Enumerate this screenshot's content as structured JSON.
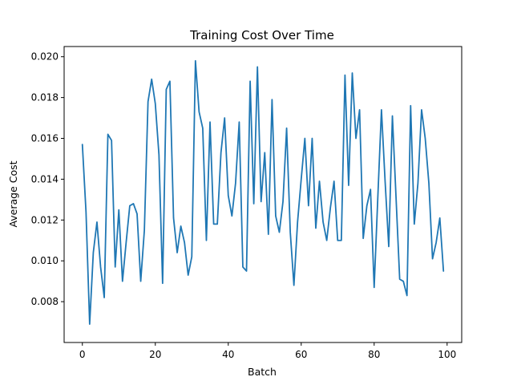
{
  "chart_data": {
    "type": "line",
    "title": "Training Cost Over Time",
    "xlabel": "Batch",
    "ylabel": "Average Cost",
    "xlim": [
      -5,
      104
    ],
    "ylim": [
      0.006,
      0.0205
    ],
    "x_ticks": [
      0,
      20,
      40,
      60,
      80,
      100
    ],
    "x_tick_labels": [
      "0",
      "20",
      "40",
      "60",
      "80",
      "100"
    ],
    "y_ticks": [
      0.008,
      0.01,
      0.012,
      0.014,
      0.016,
      0.018,
      0.02
    ],
    "y_tick_labels": [
      "0.008",
      "0.010",
      "0.012",
      "0.014",
      "0.016",
      "0.018",
      "0.020"
    ],
    "grid": false,
    "series_color": "#1f77b4",
    "series": [
      {
        "x": [
          0,
          1,
          2,
          3,
          4,
          5,
          6,
          7,
          8,
          9,
          10,
          11,
          12,
          13,
          14,
          15,
          16,
          17,
          18,
          19,
          20,
          21,
          22,
          23,
          24,
          25,
          26,
          27,
          28,
          29,
          30,
          31,
          32,
          33,
          34,
          35,
          36,
          37,
          38,
          39,
          40,
          41,
          42,
          43,
          44,
          45,
          46,
          47,
          48,
          49,
          50,
          51,
          52,
          53,
          54,
          55,
          56,
          57,
          58,
          59,
          60,
          61,
          62,
          63,
          64,
          65,
          66,
          67,
          68,
          69,
          70,
          71,
          72,
          73,
          74,
          75,
          76,
          77,
          78,
          79,
          80,
          81,
          82,
          83,
          84,
          85,
          86,
          87,
          88,
          89,
          90,
          91,
          92,
          93,
          94,
          95,
          96,
          97,
          98,
          99
        ],
        "values": [
          0.0157,
          0.0124,
          0.0069,
          0.0104,
          0.0119,
          0.0097,
          0.0082,
          0.0162,
          0.0159,
          0.0097,
          0.0125,
          0.009,
          0.0109,
          0.0127,
          0.0128,
          0.0123,
          0.009,
          0.0115,
          0.0178,
          0.0189,
          0.0177,
          0.0152,
          0.0089,
          0.0184,
          0.0188,
          0.0121,
          0.0104,
          0.0117,
          0.0109,
          0.0093,
          0.0102,
          0.0198,
          0.0173,
          0.0165,
          0.011,
          0.0168,
          0.0118,
          0.0118,
          0.0153,
          0.017,
          0.0132,
          0.0122,
          0.0138,
          0.0168,
          0.0097,
          0.0095,
          0.0188,
          0.0128,
          0.0195,
          0.0129,
          0.0153,
          0.0113,
          0.0179,
          0.0122,
          0.0114,
          0.0129,
          0.0165,
          0.0114,
          0.0088,
          0.0119,
          0.014,
          0.016,
          0.0127,
          0.016,
          0.0116,
          0.0139,
          0.0119,
          0.011,
          0.0126,
          0.0139,
          0.011,
          0.011,
          0.0191,
          0.0137,
          0.0192,
          0.016,
          0.0174,
          0.0111,
          0.0127,
          0.0135,
          0.0087,
          0.0131,
          0.0174,
          0.0139,
          0.0107,
          0.0171,
          0.0131,
          0.0091,
          0.009,
          0.0083,
          0.0176,
          0.0118,
          0.0138,
          0.0174,
          0.016,
          0.0138,
          0.0101,
          0.0109,
          0.0121,
          0.0095
        ]
      }
    ]
  }
}
